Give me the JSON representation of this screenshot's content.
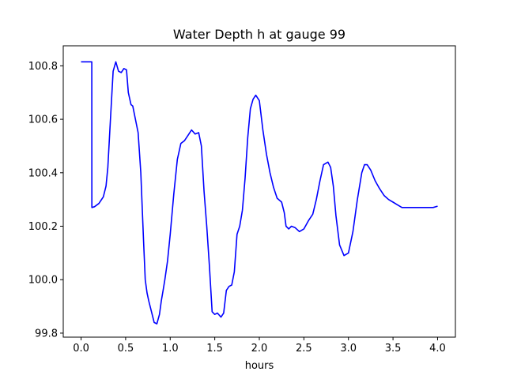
{
  "chart_data": {
    "type": "line",
    "title": "Water Depth h at gauge 99",
    "xlabel": "hours",
    "ylabel": "",
    "xlim": [
      -0.2,
      4.2
    ],
    "ylim": [
      99.785,
      100.875
    ],
    "grid": false,
    "xticks": [
      "0.0",
      "0.5",
      "1.0",
      "1.5",
      "2.0",
      "2.5",
      "3.0",
      "3.5",
      "4.0"
    ],
    "yticks": [
      "99.8",
      "100.0",
      "100.2",
      "100.4",
      "100.6",
      "100.8"
    ],
    "series": [
      {
        "color": "#0000ff",
        "x": [
          0.0,
          0.05,
          0.12,
          0.121,
          0.15,
          0.2,
          0.25,
          0.28,
          0.3,
          0.33,
          0.36,
          0.39,
          0.42,
          0.45,
          0.48,
          0.51,
          0.53,
          0.56,
          0.58,
          0.61,
          0.64,
          0.67,
          0.7,
          0.72,
          0.74,
          0.76,
          0.79,
          0.82,
          0.85,
          0.88,
          0.9,
          0.92,
          0.94,
          0.97,
          1.0,
          1.04,
          1.08,
          1.12,
          1.16,
          1.2,
          1.24,
          1.28,
          1.32,
          1.35,
          1.38,
          1.41,
          1.44,
          1.47,
          1.5,
          1.53,
          1.57,
          1.6,
          1.63,
          1.66,
          1.69,
          1.72,
          1.75,
          1.78,
          1.81,
          1.84,
          1.87,
          1.9,
          1.93,
          1.96,
          2.0,
          2.04,
          2.08,
          2.12,
          2.16,
          2.2,
          2.25,
          2.28,
          2.3,
          2.33,
          2.36,
          2.4,
          2.45,
          2.5,
          2.55,
          2.6,
          2.64,
          2.68,
          2.72,
          2.77,
          2.8,
          2.83,
          2.86,
          2.9,
          2.95,
          3.0,
          3.05,
          3.1,
          3.15,
          3.18,
          3.21,
          3.25,
          3.3,
          3.35,
          3.4,
          3.45,
          3.5,
          3.55,
          3.6,
          3.65,
          3.7,
          3.75,
          3.8,
          3.85,
          3.9,
          3.95,
          4.0
        ],
        "y": [
          100.815,
          100.815,
          100.815,
          100.27,
          100.273,
          100.285,
          100.31,
          100.35,
          100.42,
          100.6,
          100.78,
          100.815,
          100.78,
          100.775,
          100.79,
          100.785,
          100.7,
          100.655,
          100.65,
          100.6,
          100.55,
          100.4,
          100.15,
          100.0,
          99.95,
          99.92,
          99.88,
          99.84,
          99.835,
          99.87,
          99.92,
          99.96,
          100.0,
          100.07,
          100.17,
          100.32,
          100.45,
          100.51,
          100.52,
          100.54,
          100.56,
          100.545,
          100.55,
          100.5,
          100.33,
          100.2,
          100.05,
          99.88,
          99.87,
          99.875,
          99.86,
          99.875,
          99.96,
          99.975,
          99.98,
          100.03,
          100.17,
          100.2,
          100.26,
          100.38,
          100.53,
          100.64,
          100.675,
          100.69,
          100.67,
          100.56,
          100.47,
          100.4,
          100.345,
          100.305,
          100.29,
          100.25,
          100.2,
          100.19,
          100.2,
          100.195,
          100.18,
          100.19,
          100.22,
          100.245,
          100.3,
          100.37,
          100.43,
          100.44,
          100.42,
          100.35,
          100.24,
          100.13,
          100.09,
          100.1,
          100.18,
          100.3,
          100.4,
          100.43,
          100.43,
          100.41,
          100.37,
          100.34,
          100.315,
          100.3,
          100.29,
          100.28,
          100.27,
          100.27,
          100.27,
          100.27,
          100.27,
          100.27,
          100.27,
          100.27,
          100.275
        ]
      }
    ]
  }
}
